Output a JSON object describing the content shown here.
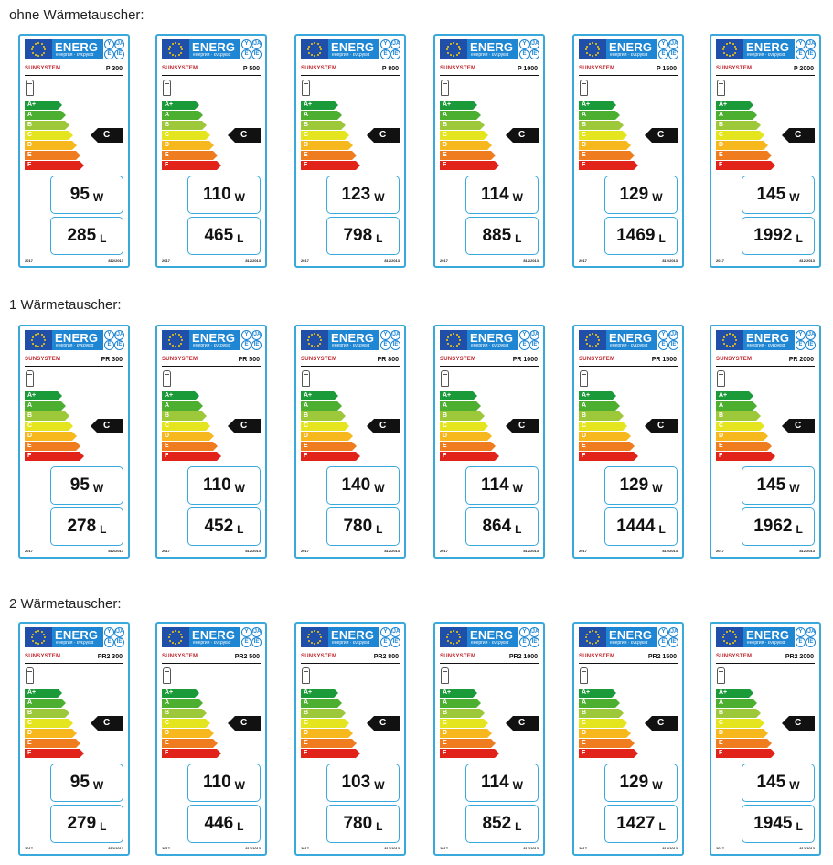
{
  "sections": [
    {
      "title": "ohne Wärmetauscher:",
      "labels": [
        {
          "model": "P 300",
          "watts": "95",
          "liters": "285"
        },
        {
          "model": "P 500",
          "watts": "110",
          "liters": "465"
        },
        {
          "model": "P 800",
          "watts": "123",
          "liters": "798"
        },
        {
          "model": "P 1000",
          "watts": "114",
          "liters": "885"
        },
        {
          "model": "P 1500",
          "watts": "129",
          "liters": "1469"
        },
        {
          "model": "P 2000",
          "watts": "145",
          "liters": "1992"
        }
      ]
    },
    {
      "title": "1 Wärmetauscher:",
      "labels": [
        {
          "model": "PR 300",
          "watts": "95",
          "liters": "278"
        },
        {
          "model": "PR 500",
          "watts": "110",
          "liters": "452"
        },
        {
          "model": "PR 800",
          "watts": "140",
          "liters": "780"
        },
        {
          "model": "PR 1000",
          "watts": "114",
          "liters": "864"
        },
        {
          "model": "PR 1500",
          "watts": "129",
          "liters": "1444"
        },
        {
          "model": "PR 2000",
          "watts": "145",
          "liters": "1962"
        }
      ]
    },
    {
      "title": "2 Wärmetauscher:",
      "labels": [
        {
          "model": "PR2 300",
          "watts": "95",
          "liters": "279"
        },
        {
          "model": "PR2 500",
          "watts": "110",
          "liters": "446"
        },
        {
          "model": "PR2 800",
          "watts": "103",
          "liters": "780"
        },
        {
          "model": "PR2 1000",
          "watts": "114",
          "liters": "852"
        },
        {
          "model": "PR2 1500",
          "watts": "129",
          "liters": "1427"
        },
        {
          "model": "PR2 2000",
          "watts": "145",
          "liters": "1945"
        }
      ]
    }
  ],
  "label_common": {
    "energ": "ENERG",
    "energ_sub": "енергия · ενεργεια",
    "lang_marks": [
      "Y",
      "IJA",
      "E",
      "IE"
    ],
    "brand": "SUNSYSTEM",
    "rating": "C",
    "watt_unit": "W",
    "liter_unit": "L",
    "year": "2017",
    "regulation": "812/2013",
    "classes": [
      {
        "name": "A+",
        "color": "#1b9a3a"
      },
      {
        "name": "A",
        "color": "#4caf2f"
      },
      {
        "name": "B",
        "color": "#9cc83a"
      },
      {
        "name": "C",
        "color": "#e5e51f"
      },
      {
        "name": "D",
        "color": "#f6b81c"
      },
      {
        "name": "E",
        "color": "#ef7c1e"
      },
      {
        "name": "F",
        "color": "#e2231a"
      }
    ]
  }
}
